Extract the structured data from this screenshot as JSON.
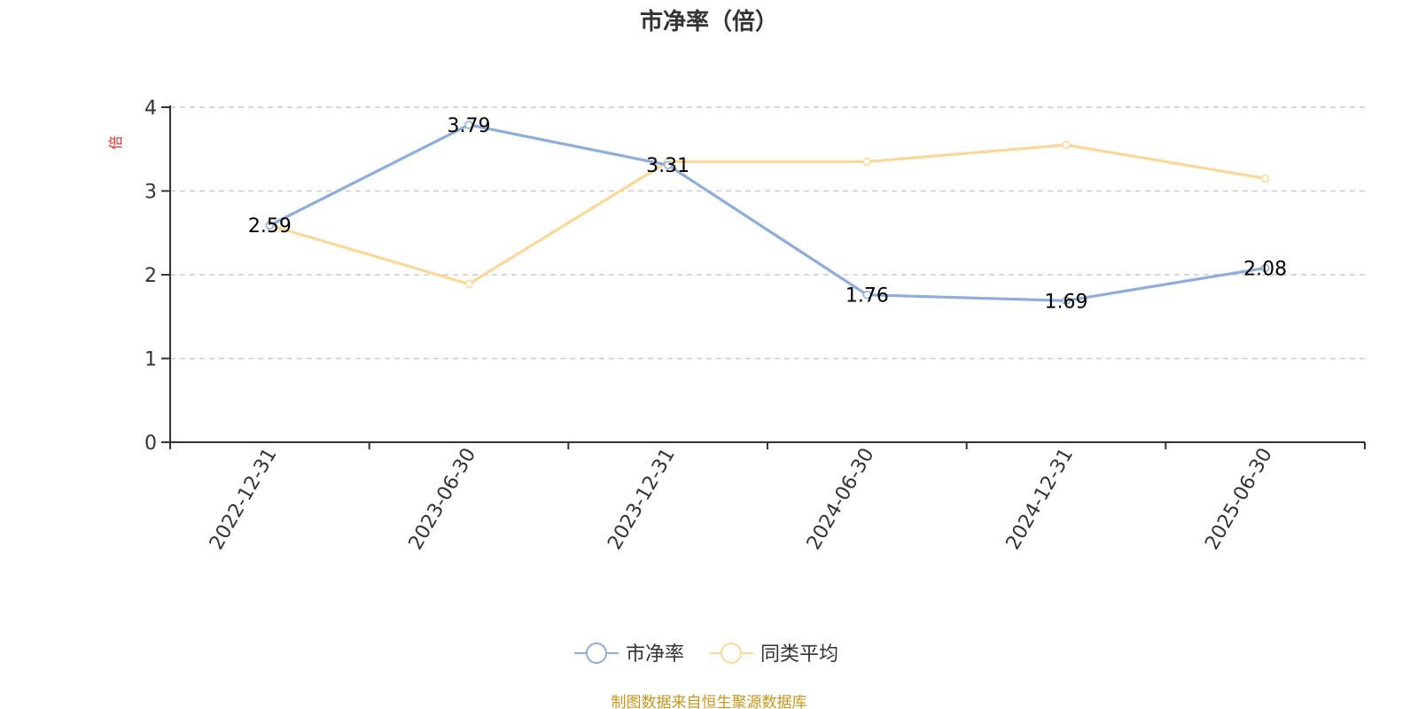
{
  "chart_data": {
    "type": "line",
    "title": "市净率（倍）",
    "ylabel": "倍",
    "xlabel": "",
    "categories": [
      "2022-12-31",
      "2023-06-30",
      "2023-12-31",
      "2024-06-30",
      "2024-12-31",
      "2025-06-30"
    ],
    "ylim": [
      0,
      4
    ],
    "yticks": [
      "0",
      "1",
      "2",
      "3",
      "4"
    ],
    "grid": true,
    "legend_position": "bottom",
    "series": [
      {
        "name": "市净率",
        "color": "#8eadd8",
        "values": [
          2.59,
          3.79,
          3.31,
          1.76,
          1.69,
          2.08
        ],
        "labels": [
          "2.59",
          "3.79",
          "3.31",
          "1.76",
          "1.69",
          "2.08"
        ]
      },
      {
        "name": "同类平均",
        "color": "#fbd899",
        "values": [
          2.59,
          1.89,
          3.35,
          3.35,
          3.55,
          3.15
        ],
        "labels": []
      }
    ],
    "ylabel_color": "#e0312a"
  },
  "source_note": "制图数据来自恒生聚源数据库",
  "source_color": "#c8961e"
}
